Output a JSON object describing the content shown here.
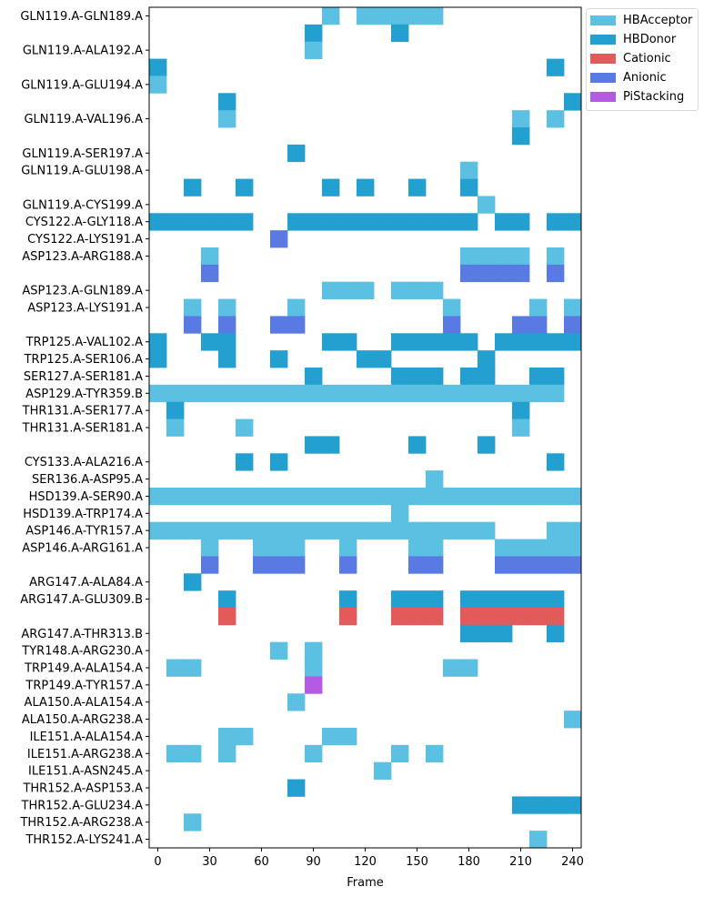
{
  "chart_data": {
    "type": "heatmap",
    "xlabel": "Frame",
    "ylabel": "",
    "xlim": [
      -5,
      245
    ],
    "xticks": [
      0,
      30,
      60,
      90,
      120,
      150,
      180,
      210,
      240
    ],
    "bin_width": 10,
    "legend_position": "upper right, outside plot",
    "colors": {
      "HBAcceptor": "#5bc0e2",
      "HBDonor": "#23a0cf",
      "Cationic": "#e25a5a",
      "Anionic": "#5a7ae3",
      "PiStacking": "#b45ae3"
    },
    "legend": [
      "HBAcceptor",
      "HBDonor",
      "Cationic",
      "Anionic",
      "PiStacking"
    ],
    "rows": [
      {
        "label": "GLN119.A-GLN189.A",
        "type": "HBAcceptor",
        "frames": [
          100,
          120,
          130,
          140,
          150,
          160
        ]
      },
      {
        "label": "",
        "type": "HBDonor",
        "frames": [
          90,
          140
        ]
      },
      {
        "label": "GLN119.A-ALA192.A",
        "type": "HBAcceptor",
        "frames": [
          90
        ]
      },
      {
        "label": "",
        "type": "HBDonor",
        "frames": [
          0,
          230
        ]
      },
      {
        "label": "GLN119.A-GLU194.A",
        "type": "HBAcceptor",
        "frames": [
          0
        ]
      },
      {
        "label": "",
        "type": "HBDonor",
        "frames": [
          40,
          240
        ]
      },
      {
        "label": "GLN119.A-VAL196.A",
        "type": "HBAcceptor",
        "frames": [
          40,
          210,
          230
        ]
      },
      {
        "label": "",
        "type": "HBDonor",
        "frames": [
          210
        ]
      },
      {
        "label": "GLN119.A-SER197.A",
        "type": "HBDonor",
        "frames": [
          80
        ]
      },
      {
        "label": "GLN119.A-GLU198.A",
        "type": "HBAcceptor",
        "frames": [
          180
        ]
      },
      {
        "label": "",
        "type": "HBDonor",
        "frames": [
          20,
          50,
          100,
          120,
          150,
          180
        ]
      },
      {
        "label": "GLN119.A-CYS199.A",
        "type": "HBAcceptor",
        "frames": [
          190
        ]
      },
      {
        "label": "CYS122.A-GLY118.A",
        "type": "HBDonor",
        "frames": [
          0,
          10,
          20,
          30,
          40,
          50,
          80,
          90,
          100,
          110,
          120,
          130,
          140,
          150,
          160,
          170,
          180,
          200,
          210,
          230,
          240
        ]
      },
      {
        "label": "CYS122.A-LYS191.A",
        "type": "Anionic",
        "frames": [
          70
        ]
      },
      {
        "label": "ASP123.A-ARG188.A",
        "type": "HBAcceptor",
        "frames": [
          30,
          180,
          190,
          200,
          210,
          230
        ]
      },
      {
        "label": "",
        "type": "Anionic",
        "frames": [
          30,
          180,
          190,
          200,
          210,
          230
        ]
      },
      {
        "label": "ASP123.A-GLN189.A",
        "type": "HBAcceptor",
        "frames": [
          100,
          110,
          120,
          140,
          150,
          160
        ]
      },
      {
        "label": "ASP123.A-LYS191.A",
        "type": "HBAcceptor",
        "frames": [
          20,
          40,
          80,
          170,
          220,
          240
        ]
      },
      {
        "label": "",
        "type": "Anionic",
        "frames": [
          20,
          40,
          70,
          80,
          170,
          210,
          220,
          240
        ]
      },
      {
        "label": "TRP125.A-VAL102.A",
        "type": "HBDonor",
        "frames": [
          0,
          30,
          40,
          100,
          110,
          140,
          150,
          160,
          170,
          180,
          200,
          210,
          220,
          230,
          240
        ]
      },
      {
        "label": "TRP125.A-SER106.A",
        "type": "HBDonor",
        "frames": [
          0,
          40,
          70,
          120,
          130,
          190
        ]
      },
      {
        "label": "SER127.A-SER181.A",
        "type": "HBDonor",
        "frames": [
          90,
          140,
          150,
          160,
          180,
          190,
          220,
          230
        ]
      },
      {
        "label": "ASP129.A-TYR359.B",
        "type": "HBAcceptor",
        "frames": [
          0,
          10,
          20,
          30,
          40,
          50,
          60,
          70,
          80,
          90,
          100,
          110,
          120,
          130,
          140,
          150,
          160,
          170,
          180,
          190,
          200,
          210,
          220,
          230
        ]
      },
      {
        "label": "THR131.A-SER177.A",
        "type": "HBDonor",
        "frames": [
          10,
          210
        ]
      },
      {
        "label": "THR131.A-SER181.A",
        "type": "HBAcceptor",
        "frames": [
          10,
          50,
          210
        ]
      },
      {
        "label": "",
        "type": "HBDonor",
        "frames": [
          90,
          100,
          150,
          190
        ]
      },
      {
        "label": "CYS133.A-ALA216.A",
        "type": "HBDonor",
        "frames": [
          50,
          70,
          230
        ]
      },
      {
        "label": "SER136.A-ASP95.A",
        "type": "HBAcceptor",
        "frames": [
          160
        ]
      },
      {
        "label": "HSD139.A-SER90.A",
        "type": "HBAcceptor",
        "frames": [
          0,
          10,
          20,
          30,
          40,
          50,
          60,
          70,
          80,
          90,
          100,
          110,
          120,
          130,
          140,
          150,
          160,
          170,
          180,
          190,
          200,
          210,
          220,
          230,
          240
        ]
      },
      {
        "label": "HSD139.A-TRP174.A",
        "type": "HBAcceptor",
        "frames": [
          140
        ]
      },
      {
        "label": "ASP146.A-TYR157.A",
        "type": "HBAcceptor",
        "frames": [
          0,
          10,
          20,
          30,
          40,
          50,
          60,
          70,
          80,
          90,
          100,
          110,
          120,
          130,
          140,
          150,
          160,
          170,
          180,
          190,
          230,
          240
        ]
      },
      {
        "label": "ASP146.A-ARG161.A",
        "type": "HBAcceptor",
        "frames": [
          30,
          60,
          70,
          80,
          110,
          150,
          160,
          200,
          210,
          220,
          230,
          240
        ]
      },
      {
        "label": "",
        "type": "Anionic",
        "frames": [
          30,
          60,
          70,
          80,
          110,
          150,
          160,
          200,
          210,
          220,
          230,
          240
        ]
      },
      {
        "label": "ARG147.A-ALA84.A",
        "type": "HBDonor",
        "frames": [
          20
        ]
      },
      {
        "label": "ARG147.A-GLU309.B",
        "type": "HBDonor",
        "frames": [
          40,
          110,
          140,
          150,
          160,
          180,
          190,
          200,
          210,
          220,
          230
        ]
      },
      {
        "label": "",
        "type": "Cationic",
        "frames": [
          40,
          110,
          140,
          150,
          160,
          180,
          190,
          200,
          210,
          220,
          230
        ]
      },
      {
        "label": "ARG147.A-THR313.B",
        "type": "HBDonor",
        "frames": [
          180,
          190,
          200,
          230
        ]
      },
      {
        "label": "TYR148.A-ARG230.A",
        "type": "HBAcceptor",
        "frames": [
          70,
          90
        ]
      },
      {
        "label": "TRP149.A-ALA154.A",
        "type": "HBAcceptor",
        "frames": [
          10,
          20,
          90,
          170,
          180
        ]
      },
      {
        "label": "TRP149.A-TYR157.A",
        "type": "PiStacking",
        "frames": [
          90
        ]
      },
      {
        "label": "ALA150.A-ALA154.A",
        "type": "HBAcceptor",
        "frames": [
          80
        ]
      },
      {
        "label": "ALA150.A-ARG238.A",
        "type": "HBAcceptor",
        "frames": [
          240
        ]
      },
      {
        "label": "ILE151.A-ALA154.A",
        "type": "HBAcceptor",
        "frames": [
          40,
          50,
          100,
          110
        ]
      },
      {
        "label": "ILE151.A-ARG238.A",
        "type": "HBAcceptor",
        "frames": [
          10,
          20,
          40,
          90,
          140,
          160
        ]
      },
      {
        "label": "ILE151.A-ASN245.A",
        "type": "HBAcceptor",
        "frames": [
          130
        ]
      },
      {
        "label": "THR152.A-ASP153.A",
        "type": "HBDonor",
        "frames": [
          80
        ]
      },
      {
        "label": "THR152.A-GLU234.A",
        "type": "HBDonor",
        "frames": [
          210,
          220,
          230,
          240
        ]
      },
      {
        "label": "THR152.A-ARG238.A",
        "type": "HBAcceptor",
        "frames": [
          20
        ]
      },
      {
        "label": "THR152.A-LYS241.A",
        "type": "HBAcceptor",
        "frames": [
          220
        ]
      }
    ]
  }
}
